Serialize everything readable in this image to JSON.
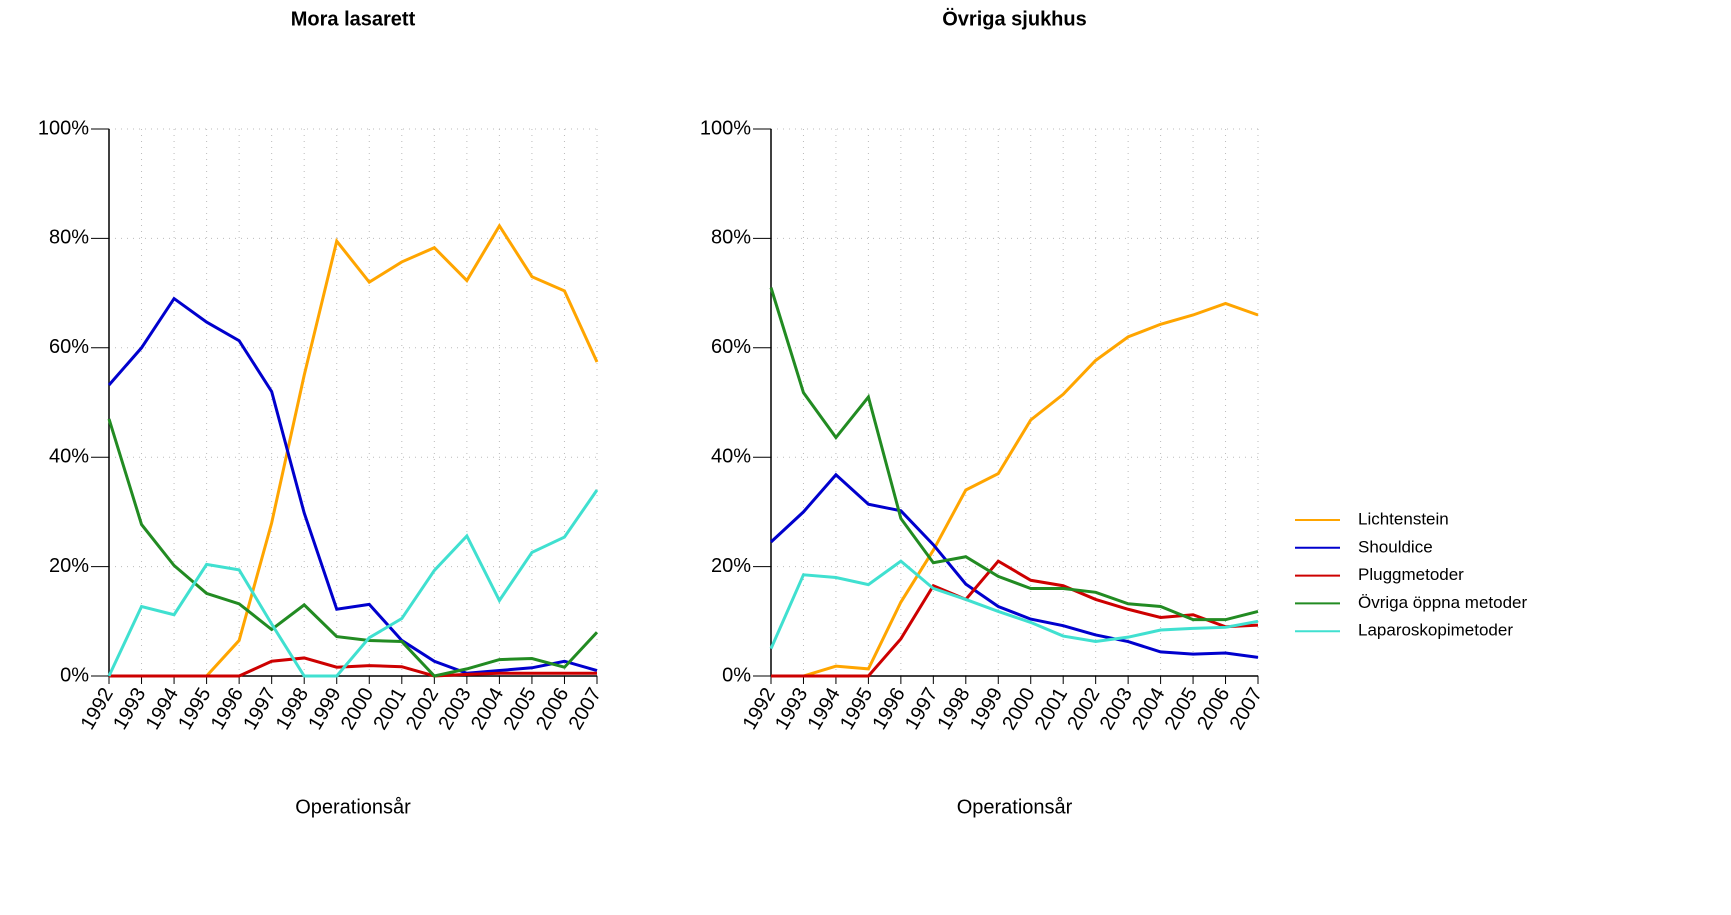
{
  "chart_data": [
    {
      "type": "line",
      "title": "Mora lasarett",
      "x_label": "Operationsår",
      "x": [
        1992,
        1993,
        1994,
        1995,
        1996,
        1997,
        1998,
        1999,
        2000,
        2001,
        2002,
        2003,
        2004,
        2005,
        2006,
        2007
      ],
      "xlim": [
        1992,
        2007
      ],
      "xticks": [
        1992,
        1993,
        1994,
        1995,
        1996,
        1997,
        1998,
        1999,
        2000,
        2001,
        2002,
        2003,
        2004,
        2005,
        2006,
        2007
      ],
      "ylim": [
        0,
        100
      ],
      "yticks": [
        {
          "value": 0,
          "label": "0%"
        },
        {
          "value": 20,
          "label": "20%"
        },
        {
          "value": 40,
          "label": "40%"
        },
        {
          "value": 60,
          "label": "60%"
        },
        {
          "value": 80,
          "label": "80%"
        },
        {
          "value": 100,
          "label": "100%"
        }
      ],
      "grid": true,
      "series": [
        {
          "name": "Lichtenstein",
          "color": "#FFA500",
          "values": [
            0,
            0,
            0,
            0,
            6.5,
            28,
            55,
            79.5,
            72,
            75.7,
            78.3,
            72.3,
            82.3,
            73,
            70.4,
            57.4
          ]
        },
        {
          "name": "Shouldice",
          "color": "#0000CD",
          "values": [
            53.2,
            60,
            69,
            64.7,
            61.3,
            52,
            29.8,
            12.2,
            13.1,
            6.5,
            2.7,
            0.5,
            1,
            1.5,
            2.7,
            1
          ]
        },
        {
          "name": "Pluggmetoder",
          "color": "#CD0000",
          "values": [
            0,
            0,
            0,
            0,
            0,
            2.7,
            3.3,
            1.6,
            1.9,
            1.7,
            0,
            0.3,
            0.5,
            0.5,
            0.5,
            0.5
          ]
        },
        {
          "name": "Övriga öppna metoder",
          "color": "#228B22",
          "values": [
            47,
            27.7,
            20.2,
            15.1,
            13.2,
            8.5,
            13,
            7.2,
            6.5,
            6.3,
            0,
            1.3,
            3,
            3.2,
            1.6,
            8
          ]
        },
        {
          "name": "Laparoskopimetoder",
          "color": "#40E0D0",
          "values": [
            0,
            12.7,
            11.2,
            20.4,
            19.4,
            9.5,
            0,
            0,
            7,
            10.5,
            19.3,
            25.6,
            13.8,
            22.6,
            25.4,
            34
          ]
        }
      ]
    },
    {
      "type": "line",
      "title": "Övriga sjukhus",
      "x_label": "Operationsår",
      "x": [
        1992,
        1993,
        1994,
        1995,
        1996,
        1997,
        1998,
        1999,
        2000,
        2001,
        2002,
        2003,
        2004,
        2005,
        2006,
        2007
      ],
      "xlim": [
        1992,
        2007
      ],
      "xticks": [
        1992,
        1993,
        1994,
        1995,
        1996,
        1997,
        1998,
        1999,
        2000,
        2001,
        2002,
        2003,
        2004,
        2005,
        2006,
        2007
      ],
      "ylim": [
        0,
        100
      ],
      "yticks": [
        {
          "value": 0,
          "label": "0%"
        },
        {
          "value": 20,
          "label": "20%"
        },
        {
          "value": 40,
          "label": "40%"
        },
        {
          "value": 60,
          "label": "60%"
        },
        {
          "value": 80,
          "label": "80%"
        },
        {
          "value": 100,
          "label": "100%"
        }
      ],
      "grid": true,
      "legend": "right",
      "series": [
        {
          "name": "Lichtenstein",
          "color": "#FFA500",
          "values": [
            0,
            0,
            1.8,
            1.3,
            13.5,
            23,
            34,
            37,
            46.8,
            51.5,
            57.7,
            62,
            64.3,
            66,
            68.1,
            66
          ]
        },
        {
          "name": "Shouldice",
          "color": "#0000CD",
          "values": [
            24.5,
            30,
            36.8,
            31.4,
            30.2,
            24,
            16.8,
            12.7,
            10.4,
            9.2,
            7.5,
            6.3,
            4.4,
            4,
            4.2,
            3.4
          ]
        },
        {
          "name": "Pluggmetoder",
          "color": "#CD0000",
          "values": [
            0,
            0,
            0,
            0,
            6.8,
            16.5,
            14,
            21,
            17.5,
            16.5,
            14,
            12.2,
            10.7,
            11.2,
            9,
            9.3
          ]
        },
        {
          "name": "Övriga öppna metoder",
          "color": "#228B22",
          "values": [
            71,
            51.8,
            43.6,
            51,
            28.8,
            20.7,
            21.8,
            18.2,
            16,
            16,
            15.3,
            13.2,
            12.7,
            10.3,
            10.3,
            11.8
          ]
        },
        {
          "name": "Laparoskopimetoder",
          "color": "#40E0D0",
          "values": [
            5,
            18.5,
            18,
            16.7,
            21,
            16,
            14,
            11.8,
            9.8,
            7.3,
            6.3,
            7.1,
            8.4,
            8.7,
            8.9,
            10
          ]
        }
      ]
    }
  ]
}
